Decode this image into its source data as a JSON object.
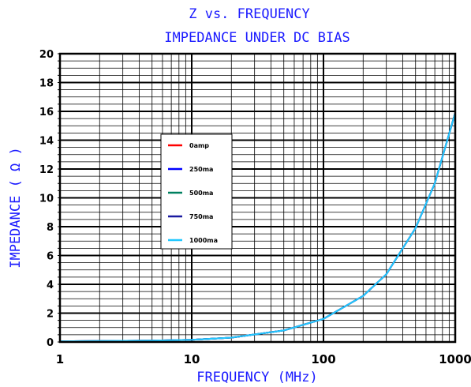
{
  "chart_data": {
    "type": "line",
    "title": "Z vs. FREQUENCY",
    "subtitle": "IMPEDANCE UNDER DC BIAS",
    "xlabel": "FREQUENCY (MHz)",
    "ylabel": "IMPEDANCE ( Ω )",
    "x_scale": "log",
    "xlim": [
      1,
      1000
    ],
    "ylim": [
      0,
      20
    ],
    "x_ticks": [
      "1",
      "10",
      "100",
      "1000"
    ],
    "y_ticks": [
      "0",
      "2",
      "4",
      "6",
      "8",
      "10",
      "12",
      "14",
      "16",
      "18",
      "20"
    ],
    "grid": true,
    "legend_position": "upper-left-center",
    "x": [
      1,
      2,
      5,
      10,
      20,
      50,
      100,
      200,
      300,
      500,
      700,
      1000
    ],
    "series": [
      {
        "name": "0amp",
        "color": "#ff0000",
        "values": [
          0.05,
          0.07,
          0.1,
          0.15,
          0.3,
          0.8,
          1.6,
          3.2,
          4.7,
          7.9,
          11.0,
          15.9
        ]
      },
      {
        "name": "250ma",
        "color": "#0000ff",
        "values": [
          0.05,
          0.07,
          0.1,
          0.15,
          0.3,
          0.8,
          1.6,
          3.2,
          4.7,
          7.9,
          11.0,
          15.9
        ]
      },
      {
        "name": "500ma",
        "color": "#008060",
        "values": [
          0.05,
          0.07,
          0.1,
          0.15,
          0.3,
          0.8,
          1.6,
          3.2,
          4.7,
          7.9,
          11.0,
          15.9
        ]
      },
      {
        "name": "750ma",
        "color": "#1a1aa0",
        "values": [
          0.05,
          0.07,
          0.1,
          0.15,
          0.3,
          0.8,
          1.6,
          3.2,
          4.7,
          7.9,
          11.0,
          15.9
        ]
      },
      {
        "name": "1000ma",
        "color": "#22c8ff",
        "values": [
          0.05,
          0.07,
          0.1,
          0.15,
          0.3,
          0.8,
          1.6,
          3.2,
          4.7,
          7.9,
          11.0,
          15.9
        ]
      }
    ]
  }
}
